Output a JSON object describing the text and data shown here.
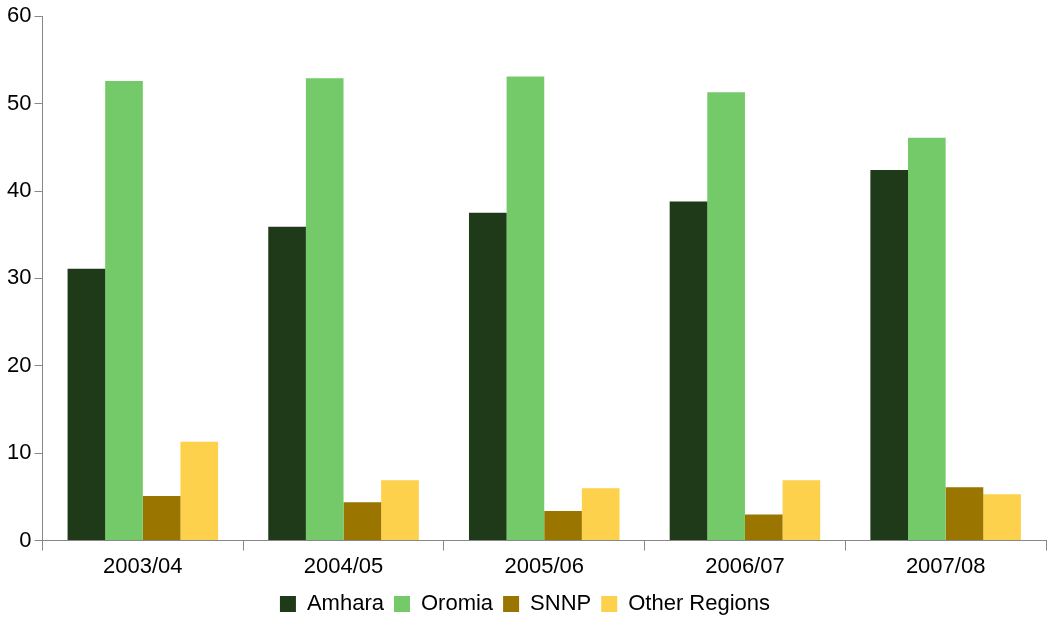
{
  "chart_data": {
    "type": "bar",
    "categories": [
      "2003/04",
      "2004/05",
      "2005/06",
      "2006/07",
      "2007/08"
    ],
    "series": [
      {
        "name": "Amhara",
        "color": "#1e3a18",
        "values": [
          31.1,
          35.9,
          37.5,
          38.8,
          42.4
        ]
      },
      {
        "name": "Oromia",
        "color": "#74c968",
        "values": [
          52.6,
          52.9,
          53.1,
          51.3,
          46.1
        ]
      },
      {
        "name": "SNNP",
        "color": "#9a7500",
        "values": [
          5.1,
          4.4,
          3.4,
          3.0,
          6.1
        ]
      },
      {
        "name": "Other Regions",
        "color": "#fdd14b",
        "values": [
          11.3,
          6.9,
          6.0,
          6.9,
          5.3
        ]
      }
    ],
    "ylim": [
      0,
      60
    ],
    "yticks": [
      0,
      10,
      20,
      30,
      40,
      50,
      60
    ],
    "grid": false,
    "legend": "bottom"
  }
}
